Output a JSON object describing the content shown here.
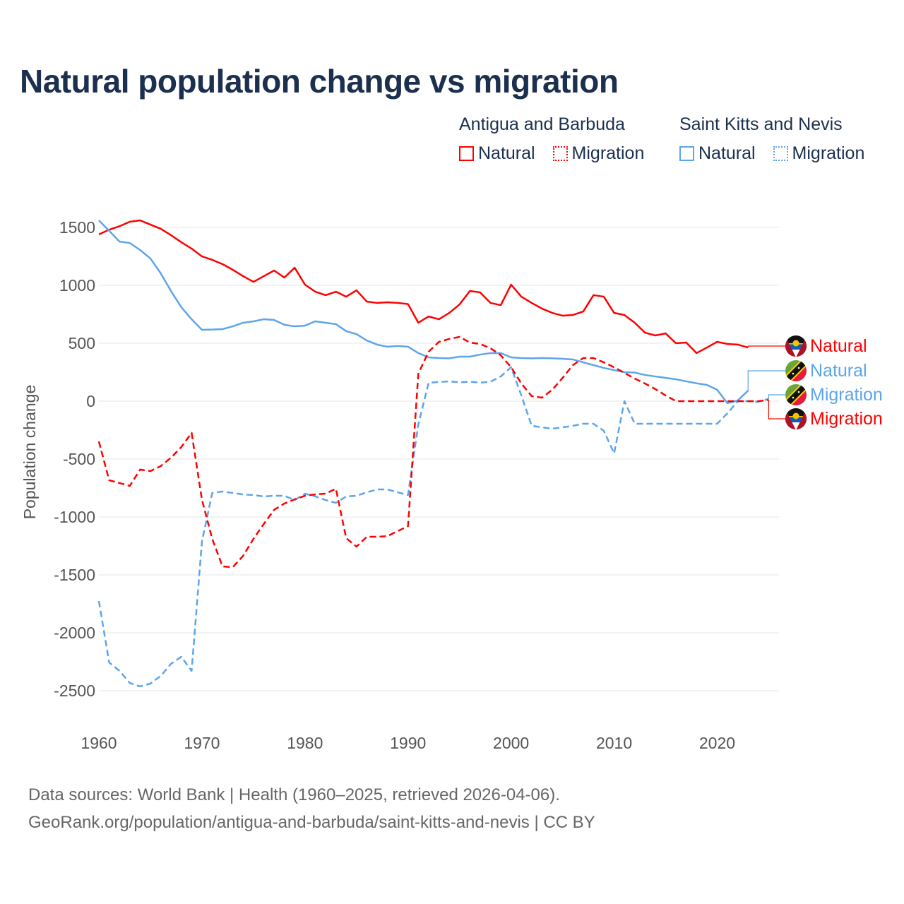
{
  "title": "Natural population change vs migration",
  "legend": {
    "groups": [
      {
        "title": "Antigua and Barbuda",
        "color": "#ff0000",
        "items": [
          {
            "label": "Natural",
            "style": "solid"
          },
          {
            "label": "Migration",
            "style": "dotted"
          }
        ]
      },
      {
        "title": "Saint Kitts and Nevis",
        "color": "#5da5ea",
        "items": [
          {
            "label": "Natural",
            "style": "solid"
          },
          {
            "label": "Migration",
            "style": "dotted"
          }
        ]
      }
    ]
  },
  "footer": {
    "line1": "Data sources: World Bank | Health (1960–2025, retrieved 2026-04-06).",
    "line2": "GeoRank.org/population/antigua-and-barbuda/saint-kitts-and-nevis | CC BY"
  },
  "chart_data": {
    "type": "line",
    "title": "Natural population change vs migration",
    "xlabel": "",
    "ylabel": "Population change",
    "xlim": [
      1960,
      2026
    ],
    "ylim": [
      -2500,
      1500
    ],
    "x_ticks": [
      "1960",
      "1970",
      "1980",
      "1990",
      "2000",
      "2010",
      "2020"
    ],
    "y_ticks": [
      "1500",
      "1000",
      "500",
      "0",
      "-500",
      "-1000",
      "-1500",
      "-2000",
      "-2500"
    ],
    "grid": true,
    "legend_position": "top-right",
    "series": [
      {
        "name": "Antigua and Barbuda Natural",
        "end_label": "Natural",
        "flag": "antigua",
        "color": "#ff0000",
        "dash": false,
        "start_year": 1960,
        "values": [
          1440,
          1480,
          1510,
          1549,
          1561,
          1524,
          1488,
          1433,
          1372,
          1317,
          1250,
          1220,
          1183,
          1134,
          1079,
          1030,
          1079,
          1128,
          1067,
          1152,
          1006,
          945,
          915,
          945,
          902,
          957,
          860,
          848,
          854,
          848,
          838,
          677,
          731,
          707,
          762,
          835,
          951,
          939,
          848,
          829,
          1006,
          902,
          848,
          799,
          762,
          738,
          744,
          774,
          915,
          902,
          762,
          744,
          677,
          591,
          567,
          585,
          500,
          506,
          415,
          463,
          512,
          494,
          488,
          463
        ]
      },
      {
        "name": "Saint Kitts and Nevis Natural",
        "end_label": "Natural",
        "flag": "stkitts",
        "color": "#5da5ea",
        "dash": false,
        "start_year": 1960,
        "values": [
          1561,
          1470,
          1378,
          1366,
          1305,
          1232,
          1104,
          951,
          811,
          707,
          616,
          618,
          622,
          646,
          677,
          689,
          707,
          701,
          659,
          646,
          652,
          689,
          677,
          665,
          604,
          579,
          524,
          488,
          470,
          476,
          470,
          415,
          378,
          372,
          370,
          384,
          384,
          402,
          415,
          415,
          378,
          372,
          370,
          372,
          370,
          366,
          360,
          335,
          311,
          287,
          268,
          250,
          247,
          226,
          213,
          201,
          189,
          171,
          154,
          140,
          98,
          -18,
          6,
          91
        ]
      },
      {
        "name": "Saint Kitts and Nevis Migration",
        "end_label": "Migration",
        "flag": "stkitts",
        "color": "#5da5ea",
        "dash": true,
        "start_year": 1960,
        "values": [
          -1726,
          -2256,
          -2329,
          -2433,
          -2463,
          -2439,
          -2372,
          -2268,
          -2207,
          -2329,
          -1213,
          -793,
          -780,
          -793,
          -805,
          -811,
          -823,
          -817,
          -817,
          -854,
          -799,
          -823,
          -854,
          -878,
          -823,
          -817,
          -787,
          -762,
          -762,
          -787,
          -811,
          -200,
          159,
          165,
          171,
          162,
          168,
          159,
          168,
          213,
          293,
          49,
          -213,
          -226,
          -238,
          -226,
          -213,
          -195,
          -195,
          -256,
          -451,
          0,
          -195,
          -195,
          -195,
          -195,
          -195,
          -195,
          -195,
          -195,
          -195,
          -104,
          0,
          0,
          -5,
          20
        ]
      },
      {
        "name": "Antigua and Barbuda Migration",
        "end_label": "Migration",
        "flag": "antigua",
        "color": "#ff0000",
        "dash": true,
        "start_year": 1960,
        "values": [
          -348,
          -683,
          -707,
          -732,
          -591,
          -604,
          -561,
          -488,
          -396,
          -274,
          -850,
          -1189,
          -1427,
          -1433,
          -1335,
          -1189,
          -1061,
          -939,
          -884,
          -848,
          -817,
          -805,
          -799,
          -756,
          -1183,
          -1256,
          -1171,
          -1171,
          -1165,
          -1122,
          -1079,
          238,
          427,
          512,
          537,
          555,
          506,
          494,
          457,
          396,
          293,
          152,
          43,
          30,
          98,
          201,
          311,
          372,
          372,
          335,
          293,
          244,
          195,
          152,
          104,
          49,
          0,
          0,
          0,
          0,
          0,
          0,
          0,
          0,
          0,
          10
        ]
      }
    ]
  }
}
